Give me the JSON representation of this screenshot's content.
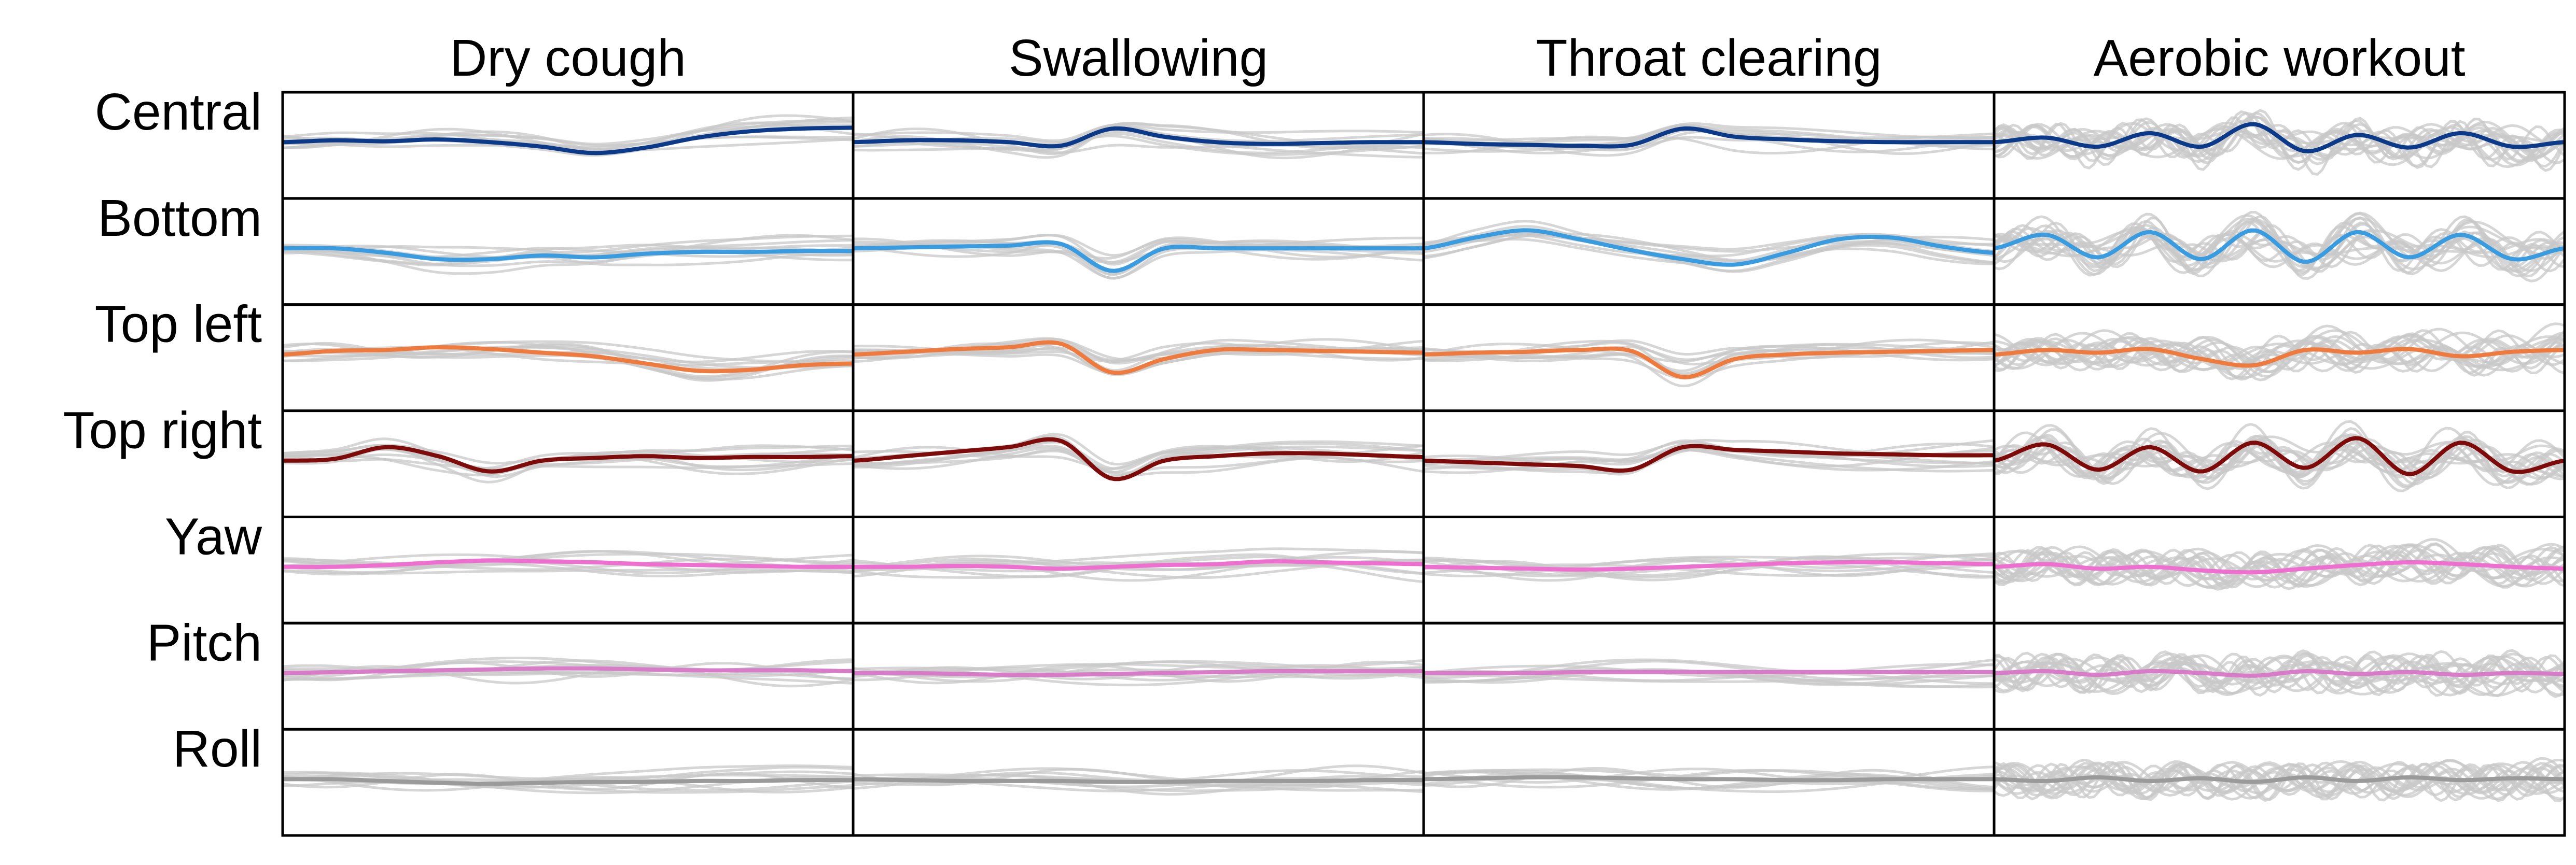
{
  "chart_data": {
    "type": "line",
    "columns": [
      "Dry cough",
      "Swallowing",
      "Throat clearing",
      "Aerobic workout"
    ],
    "rows": [
      "Central",
      "Bottom",
      "Top left",
      "Top right",
      "Yaw",
      "Pitch",
      "Roll"
    ],
    "row_colors": [
      "#0b3a8a",
      "#3a9ce0",
      "#ef7a3d",
      "#7e0a0a",
      "#ee6fcf",
      "#d87bc8",
      "#9a9a9a"
    ],
    "background_trace_color": "#c8c8c8",
    "grid": false,
    "legend": "none",
    "axis_ticks": "none",
    "description_of_values": "normalized signal amplitude (mean trace highlighted, individual trials in gray)",
    "panels": [
      {
        "column": "Dry cough",
        "row": "Central",
        "mean_trace": [
          0.0,
          0.02,
          0.01,
          0.03,
          0.0,
          -0.05,
          -0.12,
          -0.06,
          0.05,
          0.12,
          0.15,
          0.16
        ]
      },
      {
        "column": "Dry cough",
        "row": "Bottom",
        "mean_trace": [
          0.0,
          0.0,
          -0.05,
          -0.12,
          -0.12,
          -0.08,
          -0.1,
          -0.06,
          -0.04,
          -0.04,
          -0.03,
          -0.03
        ]
      },
      {
        "column": "Dry cough",
        "row": "Top left",
        "mean_trace": [
          0.0,
          0.04,
          0.05,
          0.08,
          0.06,
          0.02,
          -0.02,
          -0.1,
          -0.18,
          -0.17,
          -0.12,
          -0.1
        ]
      },
      {
        "column": "Dry cough",
        "row": "Top right",
        "mean_trace": [
          0.0,
          0.02,
          0.15,
          0.05,
          -0.12,
          0.0,
          0.03,
          0.05,
          0.03,
          0.04,
          0.04,
          0.05
        ]
      },
      {
        "column": "Dry cough",
        "row": "Yaw",
        "mean_trace": [
          0.0,
          0.0,
          0.02,
          0.05,
          0.07,
          0.06,
          0.05,
          0.03,
          0.02,
          0.01,
          0.0,
          0.0
        ]
      },
      {
        "column": "Dry cough",
        "row": "Pitch",
        "mean_trace": [
          0.0,
          0.01,
          0.02,
          0.03,
          0.04,
          0.05,
          0.05,
          0.04,
          0.03,
          0.03,
          0.03,
          0.02
        ]
      },
      {
        "column": "Dry cough",
        "row": "Roll",
        "mean_trace": [
          0.0,
          0.0,
          -0.02,
          -0.04,
          -0.05,
          -0.04,
          -0.03,
          -0.03,
          -0.02,
          -0.02,
          -0.01,
          -0.01
        ]
      },
      {
        "column": "Swallowing",
        "row": "Central",
        "mean_trace": [
          0.0,
          0.02,
          0.02,
          0.0,
          -0.04,
          0.15,
          0.06,
          0.0,
          -0.02,
          -0.01,
          0.0,
          0.0
        ]
      },
      {
        "column": "Swallowing",
        "row": "Bottom",
        "mean_trace": [
          0.0,
          0.01,
          0.02,
          0.03,
          0.05,
          -0.25,
          0.0,
          0.0,
          0.0,
          0.0,
          0.0,
          0.0
        ]
      },
      {
        "column": "Swallowing",
        "row": "Top left",
        "mean_trace": [
          0.0,
          0.03,
          0.06,
          0.08,
          0.12,
          -0.2,
          -0.05,
          0.05,
          0.05,
          0.04,
          0.03,
          0.02
        ]
      },
      {
        "column": "Swallowing",
        "row": "Top right",
        "mean_trace": [
          0.0,
          0.05,
          0.1,
          0.15,
          0.22,
          -0.2,
          0.0,
          0.05,
          0.08,
          0.08,
          0.06,
          0.04
        ]
      },
      {
        "column": "Swallowing",
        "row": "Yaw",
        "mean_trace": [
          0.0,
          0.0,
          0.01,
          0.0,
          -0.02,
          0.0,
          0.02,
          0.03,
          0.06,
          0.05,
          0.04,
          0.03
        ]
      },
      {
        "column": "Swallowing",
        "row": "Pitch",
        "mean_trace": [
          0.0,
          0.0,
          -0.01,
          -0.02,
          -0.02,
          -0.01,
          0.0,
          0.01,
          0.02,
          0.02,
          0.02,
          0.02
        ]
      },
      {
        "column": "Swallowing",
        "row": "Roll",
        "mean_trace": [
          0.0,
          -0.01,
          -0.02,
          -0.02,
          -0.02,
          -0.03,
          -0.03,
          -0.02,
          -0.02,
          -0.02,
          -0.01,
          -0.01
        ]
      },
      {
        "column": "Throat clearing",
        "row": "Central",
        "mean_trace": [
          0.0,
          -0.02,
          -0.03,
          -0.04,
          -0.03,
          0.15,
          0.06,
          0.03,
          0.01,
          0.0,
          0.0,
          0.0
        ]
      },
      {
        "column": "Throat clearing",
        "row": "Bottom",
        "mean_trace": [
          0.0,
          0.12,
          0.2,
          0.1,
          -0.02,
          -0.12,
          -0.18,
          -0.05,
          0.1,
          0.12,
          0.02,
          -0.05
        ]
      },
      {
        "column": "Throat clearing",
        "row": "Top left",
        "mean_trace": [
          0.0,
          0.02,
          0.03,
          0.05,
          0.04,
          -0.25,
          -0.05,
          0.0,
          0.02,
          0.03,
          0.04,
          0.05
        ]
      },
      {
        "column": "Throat clearing",
        "row": "Top right",
        "mean_trace": [
          0.0,
          -0.02,
          -0.04,
          -0.06,
          -0.1,
          0.15,
          0.12,
          0.1,
          0.08,
          0.07,
          0.06,
          0.06
        ]
      },
      {
        "column": "Throat clearing",
        "row": "Yaw",
        "mean_trace": [
          0.0,
          -0.01,
          -0.02,
          -0.03,
          -0.02,
          0.0,
          0.02,
          0.04,
          0.05,
          0.05,
          0.04,
          0.03
        ]
      },
      {
        "column": "Throat clearing",
        "row": "Pitch",
        "mean_trace": [
          0.0,
          0.0,
          0.0,
          0.01,
          0.01,
          0.01,
          0.01,
          0.01,
          0.01,
          0.01,
          0.01,
          0.01
        ]
      },
      {
        "column": "Throat clearing",
        "row": "Roll",
        "mean_trace": [
          0.0,
          0.01,
          0.02,
          0.02,
          0.01,
          0.0,
          0.0,
          -0.01,
          -0.01,
          0.0,
          0.0,
          0.0
        ]
      },
      {
        "column": "Aerobic workout",
        "row": "Central",
        "mean_trace": [
          0.0,
          0.05,
          -0.05,
          0.1,
          -0.05,
          0.2,
          -0.1,
          0.08,
          -0.06,
          0.1,
          -0.05,
          0.0
        ]
      },
      {
        "column": "Aerobic workout",
        "row": "Bottom",
        "mean_trace": [
          0.0,
          0.15,
          -0.1,
          0.18,
          -0.12,
          0.2,
          -0.15,
          0.18,
          -0.1,
          0.15,
          -0.12,
          0.0
        ]
      },
      {
        "column": "Aerobic workout",
        "row": "Top left",
        "mean_trace": [
          0.0,
          0.05,
          0.02,
          0.06,
          -0.05,
          -0.12,
          0.05,
          0.02,
          0.06,
          -0.02,
          0.03,
          0.05
        ]
      },
      {
        "column": "Aerobic workout",
        "row": "Top right",
        "mean_trace": [
          0.0,
          0.18,
          -0.1,
          0.15,
          -0.12,
          0.2,
          -0.08,
          0.25,
          -0.15,
          0.2,
          -0.12,
          0.0
        ]
      },
      {
        "column": "Aerobic workout",
        "row": "Yaw",
        "mean_trace": [
          0.0,
          0.03,
          -0.02,
          0.0,
          -0.04,
          -0.06,
          -0.02,
          0.02,
          0.05,
          0.03,
          0.0,
          -0.02
        ]
      },
      {
        "column": "Aerobic workout",
        "row": "Pitch",
        "mean_trace": [
          0.0,
          0.02,
          -0.02,
          0.02,
          0.0,
          -0.03,
          0.02,
          -0.01,
          0.01,
          -0.02,
          0.0,
          -0.01
        ]
      },
      {
        "column": "Aerobic workout",
        "row": "Roll",
        "mean_trace": [
          0.0,
          -0.02,
          0.02,
          -0.02,
          0.01,
          -0.03,
          0.02,
          -0.02,
          0.02,
          -0.01,
          0.01,
          0.0
        ]
      }
    ]
  }
}
